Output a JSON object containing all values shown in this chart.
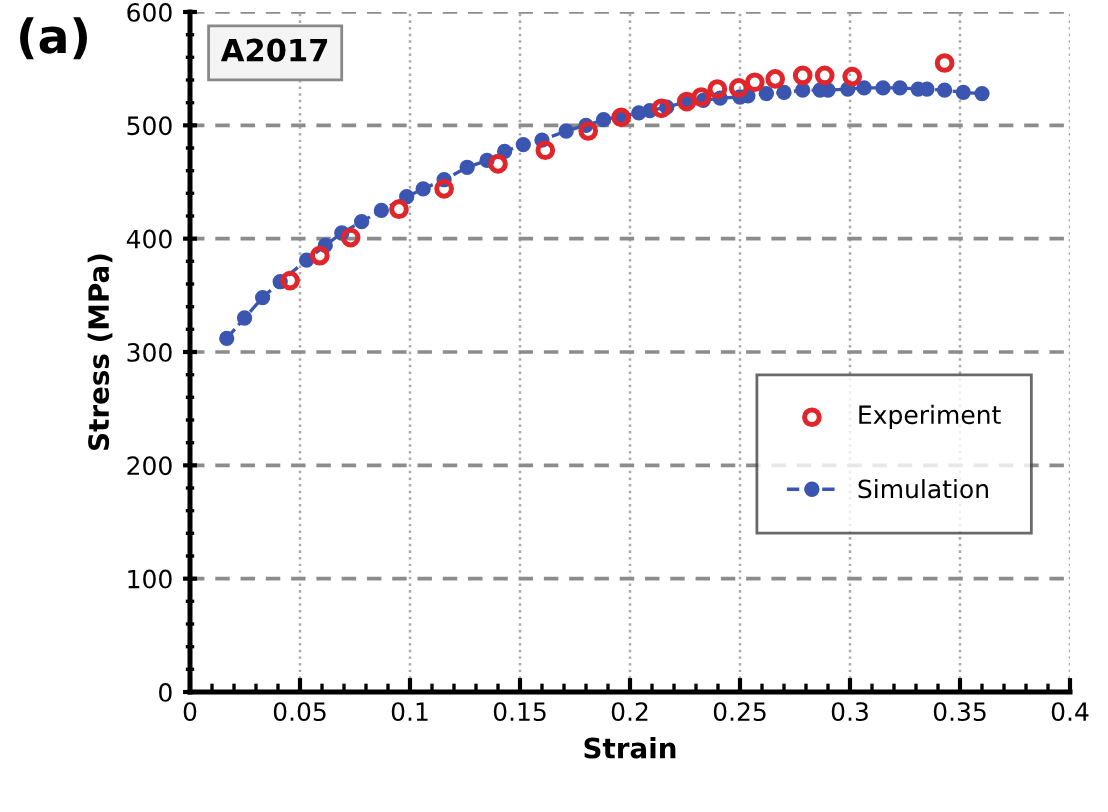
{
  "chart_data": {
    "type": "scatter",
    "xlabel": "Strain",
    "ylabel": "Stress (MPa)",
    "annotations": [
      "(a)",
      "A2017"
    ],
    "xlim": [
      0,
      0.4
    ],
    "xticks": [
      0,
      0.05,
      0.1,
      0.15,
      0.2,
      0.25,
      0.3,
      0.35,
      0.4
    ],
    "ylim": [
      0,
      600
    ],
    "yticks": [
      0,
      100,
      200,
      300,
      400,
      500,
      600
    ],
    "grid": true,
    "legend": "right",
    "series": [
      {
        "name": "Experiment",
        "marker": "circle",
        "color": "#e0262b",
        "x": [
          0.0455,
          0.059,
          0.073,
          0.095,
          0.1155,
          0.14,
          0.1615,
          0.181,
          0.196,
          0.2143,
          0.2258,
          0.2324,
          0.2397,
          0.2494,
          0.2567,
          0.266,
          0.2785,
          0.2885,
          0.301,
          0.343
        ],
        "values": [
          363,
          385,
          401,
          426,
          444,
          466,
          478,
          495,
          507,
          515,
          521,
          525,
          532,
          533,
          538,
          541,
          544,
          544,
          543,
          555
        ]
      },
      {
        "name": "Simulation",
        "type": "line",
        "marker": "circle",
        "line_style": "dashed",
        "color": "#3a56b0",
        "x": [
          0.0167,
          0.0248,
          0.033,
          0.041,
          0.053,
          0.0615,
          0.069,
          0.078,
          0.087,
          0.0985,
          0.106,
          0.1155,
          0.126,
          0.135,
          0.143,
          0.1515,
          0.16,
          0.171,
          0.18,
          0.188,
          0.196,
          0.204,
          0.209,
          0.2167,
          0.2258,
          0.2333,
          0.241,
          0.25,
          0.2536,
          0.262,
          0.27,
          0.2785,
          0.2864,
          0.29,
          0.299,
          0.3064,
          0.315,
          0.3227,
          0.331,
          0.335,
          0.343,
          0.3515,
          0.36
        ],
        "values": [
          312,
          330,
          348,
          362,
          381,
          394,
          405,
          415,
          425,
          437,
          444,
          452,
          463,
          469,
          477,
          483,
          487,
          495,
          500,
          505,
          508,
          511,
          513,
          516,
          521,
          522,
          524,
          525,
          526,
          528,
          529,
          531,
          531,
          531,
          532,
          533,
          533,
          533,
          532,
          532,
          531,
          529,
          528
        ]
      }
    ]
  }
}
